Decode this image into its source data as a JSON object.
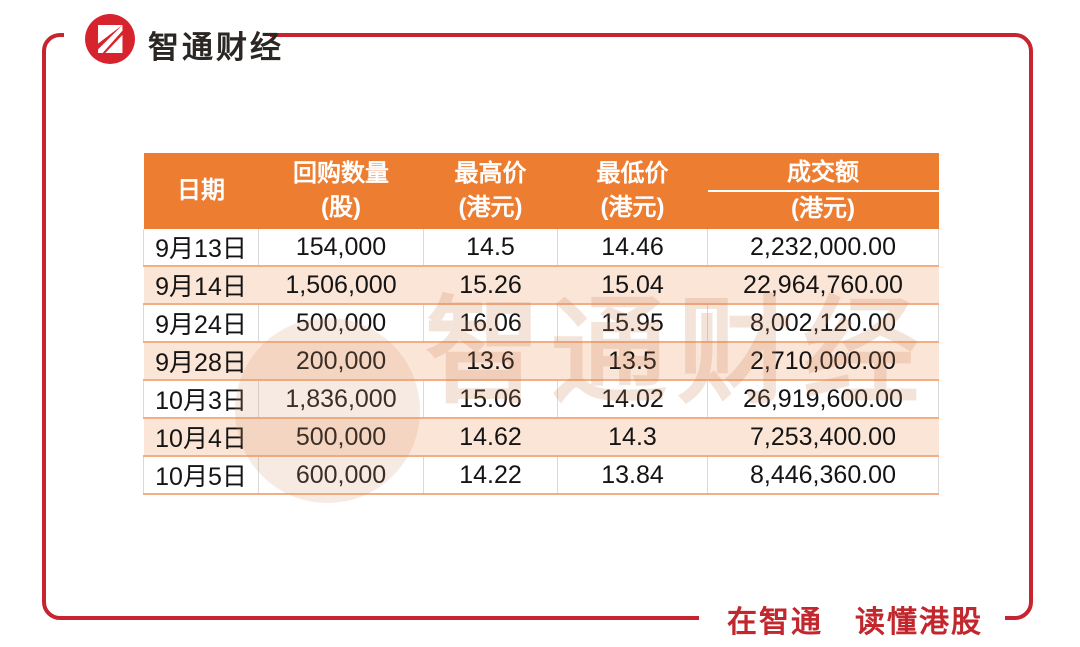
{
  "brand": {
    "logo_text": "智通财经",
    "slogan": "在智通　读懂港股",
    "accent_red": "#C8242F",
    "logo_red": "#D7232E"
  },
  "watermark": "智通财经",
  "table": {
    "header": {
      "date": "日期",
      "qty_line1": "回购数量",
      "qty_line2": "(股)",
      "high_line1": "最高价",
      "high_line2": "(港元)",
      "low_line1": "最低价",
      "low_line2": "(港元)",
      "amount_line1": "成交额",
      "amount_line2": "(港元)",
      "header_bg": "#ED7D31",
      "shade_row_bg": "#FBE5D6",
      "shade_border": "#F2AF85"
    },
    "rows": [
      {
        "date": "9月13日",
        "qty": "154,000",
        "high": "14.5",
        "low": "14.46",
        "amount": "2,232,000.00",
        "shade": false
      },
      {
        "date": "9月14日",
        "qty": "1,506,000",
        "high": "15.26",
        "low": "15.04",
        "amount": "22,964,760.00",
        "shade": true
      },
      {
        "date": "9月24日",
        "qty": "500,000",
        "high": "16.06",
        "low": "15.95",
        "amount": "8,002,120.00",
        "shade": false
      },
      {
        "date": "9月28日",
        "qty": "200,000",
        "high": "13.6",
        "low": "13.5",
        "amount": "2,710,000.00",
        "shade": true
      },
      {
        "date": "10月3日",
        "qty": "1,836,000",
        "high": "15.06",
        "low": "14.02",
        "amount": "26,919,600.00",
        "shade": false
      },
      {
        "date": "10月4日",
        "qty": "500,000",
        "high": "14.62",
        "low": "14.3",
        "amount": "7,253,400.00",
        "shade": true
      },
      {
        "date": "10月5日",
        "qty": "600,000",
        "high": "14.22",
        "low": "13.84",
        "amount": "8,446,360.00",
        "shade": false
      }
    ]
  },
  "chart_data": {
    "type": "table",
    "title": "",
    "columns": [
      "日期",
      "回购数量(股)",
      "最高价(港元)",
      "最低价(港元)",
      "成交额(港元)"
    ],
    "rows": [
      [
        "9月13日",
        154000,
        14.5,
        14.46,
        2232000.0
      ],
      [
        "9月14日",
        1506000,
        15.26,
        15.04,
        22964760.0
      ],
      [
        "9月24日",
        500000,
        16.06,
        15.95,
        8002120.0
      ],
      [
        "9月28日",
        200000,
        13.6,
        13.5,
        2710000.0
      ],
      [
        "10月3日",
        1836000,
        15.06,
        14.02,
        26919600.0
      ],
      [
        "10月4日",
        500000,
        14.62,
        14.3,
        7253400.0
      ],
      [
        "10月5日",
        600000,
        14.22,
        13.84,
        8446360.0
      ]
    ]
  }
}
